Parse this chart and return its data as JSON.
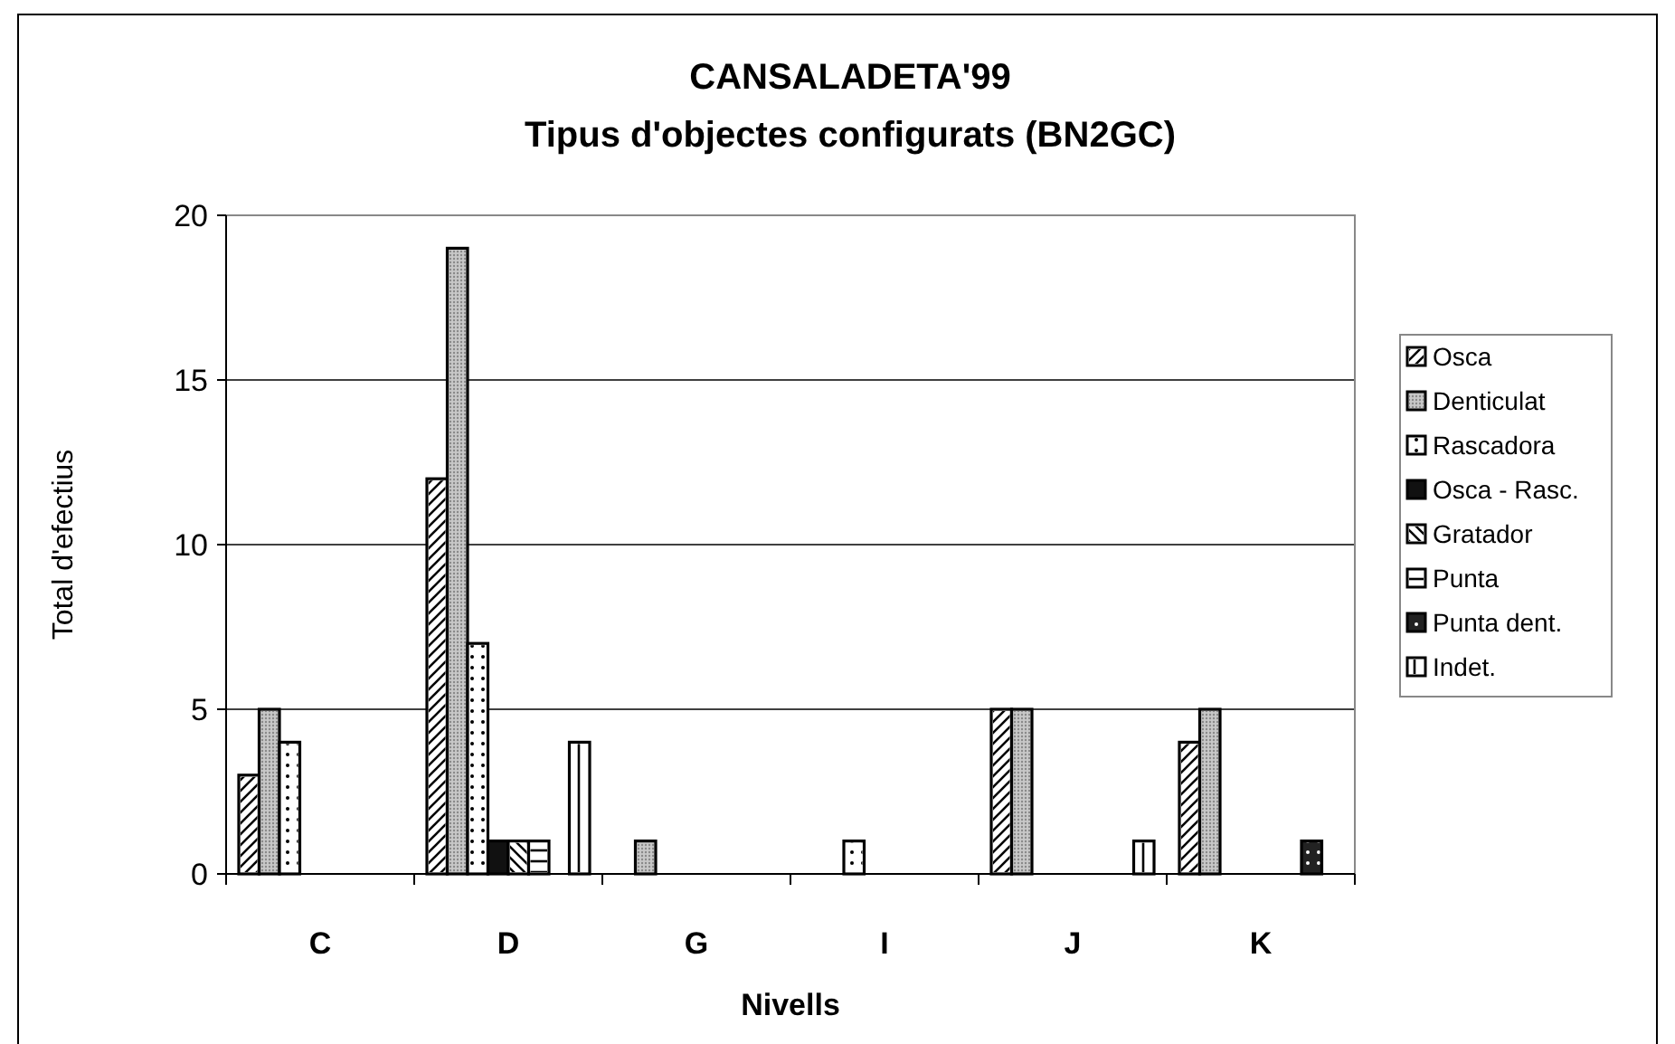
{
  "chart_data": {
    "type": "bar",
    "title": "CANSALADETA'99",
    "subtitle": "Tipus d'objectes configurats (BN2GC)",
    "xlabel": "Nivells",
    "ylabel": "Total d'efectius",
    "categories": [
      "C",
      "D",
      "G",
      "I",
      "J",
      "K"
    ],
    "series": [
      {
        "name": "Osca",
        "color": "#ffffff",
        "values": [
          3,
          12,
          null,
          null,
          5,
          4
        ]
      },
      {
        "name": "Denticulat",
        "color": "#c8c8c8",
        "values": [
          5,
          19,
          1,
          null,
          5,
          5
        ]
      },
      {
        "name": "Rascadora",
        "color": "#ffffff",
        "values": [
          4,
          7,
          null,
          1,
          null,
          null
        ]
      },
      {
        "name": "Osca - Rasc.",
        "color": "#111111",
        "values": [
          null,
          1,
          null,
          null,
          null,
          null
        ]
      },
      {
        "name": "Gratador",
        "color": "#ffffff",
        "values": [
          null,
          1,
          null,
          null,
          null,
          null
        ]
      },
      {
        "name": "Punta",
        "color": "#ffffff",
        "values": [
          null,
          1,
          null,
          null,
          null,
          null
        ]
      },
      {
        "name": "Punta dent.",
        "color": "#222222",
        "values": [
          null,
          null,
          null,
          null,
          null,
          1
        ]
      },
      {
        "name": "Indet.",
        "color": "#ffffff",
        "values": [
          null,
          4,
          null,
          null,
          1,
          null
        ]
      }
    ],
    "ylim": [
      0,
      20
    ],
    "yticks": [
      0,
      5,
      10,
      15,
      20
    ],
    "grid": "y",
    "legend": "right"
  }
}
